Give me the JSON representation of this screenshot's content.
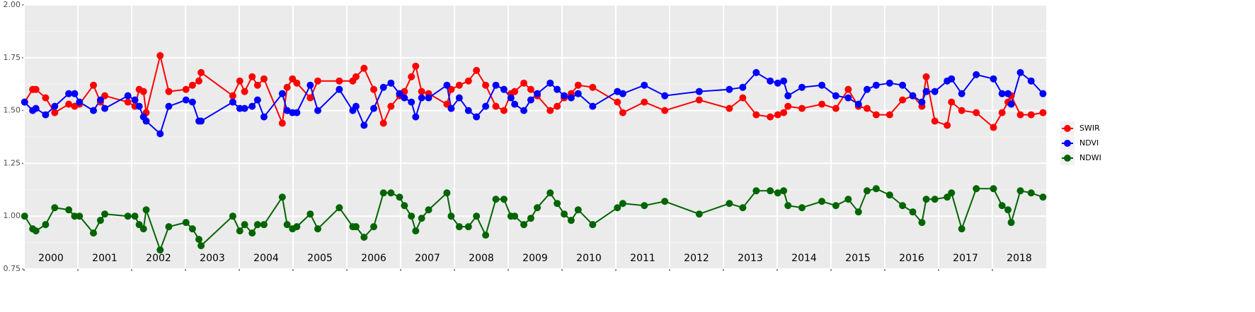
{
  "chart_data": {
    "type": "line",
    "x": [
      2000.01,
      2000.16,
      2000.22,
      2000.4,
      2000.57,
      2000.83,
      2000.94,
      2001.03,
      2001.29,
      2001.42,
      2001.5,
      2001.93,
      2002.06,
      2002.14,
      2002.22,
      2002.27,
      2002.53,
      2002.69,
      2003.01,
      2003.13,
      2003.25,
      2003.29,
      2003.88,
      2004.01,
      2004.1,
      2004.24,
      2004.34,
      2004.46,
      2004.8,
      2004.89,
      2004.99,
      2005.07,
      2005.32,
      2005.46,
      2005.86,
      2006.11,
      2006.17,
      2006.32,
      2006.5,
      2006.68,
      2006.82,
      2006.98,
      2007.07,
      2007.2,
      2007.28,
      2007.39,
      2007.52,
      2007.86,
      2007.94,
      2008.09,
      2008.26,
      2008.41,
      2008.58,
      2008.77,
      2008.92,
      2009.05,
      2009.12,
      2009.29,
      2009.42,
      2009.54,
      2009.78,
      2009.91,
      2010.04,
      2010.17,
      2010.3,
      2010.57,
      2011.03,
      2011.13,
      2011.53,
      2011.91,
      2012.55,
      2013.11,
      2013.36,
      2013.61,
      2013.87,
      2014.01,
      2014.12,
      2014.2,
      2014.46,
      2014.83,
      2015.09,
      2015.32,
      2015.51,
      2015.67,
      2015.84,
      2016.09,
      2016.33,
      2016.52,
      2016.69,
      2016.77,
      2016.93,
      2017.16,
      2017.24,
      2017.43,
      2017.7,
      2018.02,
      2018.18,
      2018.29,
      2018.35,
      2018.52,
      2018.72,
      2018.94
    ],
    "series": [
      {
        "name": "SWIR",
        "color": "#ff0000",
        "values": [
          1.54,
          1.6,
          1.6,
          1.56,
          1.49,
          1.53,
          1.52,
          1.53,
          1.62,
          1.54,
          1.57,
          1.54,
          1.52,
          1.6,
          1.59,
          1.49,
          1.76,
          1.59,
          1.6,
          1.62,
          1.64,
          1.68,
          1.57,
          1.64,
          1.59,
          1.66,
          1.62,
          1.65,
          1.44,
          1.61,
          1.65,
          1.63,
          1.56,
          1.64,
          1.64,
          1.64,
          1.66,
          1.7,
          1.6,
          1.44,
          1.52,
          1.57,
          1.59,
          1.66,
          1.71,
          1.59,
          1.58,
          1.53,
          1.6,
          1.62,
          1.64,
          1.69,
          1.62,
          1.52,
          1.5,
          1.58,
          1.59,
          1.63,
          1.6,
          1.57,
          1.5,
          1.52,
          1.56,
          1.58,
          1.62,
          1.61,
          1.54,
          1.49,
          1.54,
          1.5,
          1.55,
          1.51,
          1.56,
          1.48,
          1.47,
          1.48,
          1.49,
          1.52,
          1.51,
          1.53,
          1.51,
          1.6,
          1.52,
          1.51,
          1.48,
          1.48,
          1.55,
          1.57,
          1.52,
          1.66,
          1.45,
          1.43,
          1.54,
          1.5,
          1.49,
          1.42,
          1.49,
          1.54,
          1.57,
          1.48,
          1.48,
          1.49
        ]
      },
      {
        "name": "NDVI",
        "color": "#0000ff",
        "values": [
          1.54,
          1.5,
          1.51,
          1.48,
          1.52,
          1.58,
          1.58,
          1.54,
          1.5,
          1.55,
          1.51,
          1.57,
          1.55,
          1.52,
          1.47,
          1.45,
          1.39,
          1.52,
          1.55,
          1.54,
          1.45,
          1.45,
          1.54,
          1.51,
          1.51,
          1.52,
          1.55,
          1.47,
          1.58,
          1.5,
          1.49,
          1.49,
          1.62,
          1.5,
          1.6,
          1.5,
          1.52,
          1.43,
          1.51,
          1.61,
          1.63,
          1.58,
          1.56,
          1.54,
          1.47,
          1.56,
          1.56,
          1.62,
          1.51,
          1.56,
          1.5,
          1.47,
          1.52,
          1.62,
          1.6,
          1.56,
          1.53,
          1.5,
          1.55,
          1.58,
          1.63,
          1.6,
          1.57,
          1.56,
          1.58,
          1.52,
          1.59,
          1.58,
          1.62,
          1.57,
          1.59,
          1.6,
          1.61,
          1.68,
          1.64,
          1.63,
          1.64,
          1.57,
          1.61,
          1.62,
          1.57,
          1.56,
          1.53,
          1.6,
          1.62,
          1.63,
          1.62,
          1.57,
          1.54,
          1.59,
          1.59,
          1.64,
          1.65,
          1.58,
          1.67,
          1.65,
          1.58,
          1.58,
          1.53,
          1.68,
          1.64,
          1.58
        ]
      },
      {
        "name": "NDWI",
        "color": "#006400",
        "values": [
          1.0,
          0.94,
          0.93,
          0.96,
          1.04,
          1.03,
          1.0,
          1.0,
          0.92,
          0.98,
          1.01,
          1.0,
          1.0,
          0.96,
          0.94,
          1.03,
          0.84,
          0.95,
          0.97,
          0.94,
          0.89,
          0.86,
          1.0,
          0.93,
          0.96,
          0.92,
          0.96,
          0.96,
          1.09,
          0.96,
          0.94,
          0.95,
          1.01,
          0.94,
          1.04,
          0.95,
          0.95,
          0.9,
          0.95,
          1.11,
          1.11,
          1.09,
          1.05,
          1.0,
          0.93,
          0.99,
          1.03,
          1.11,
          1.0,
          0.95,
          0.95,
          1.0,
          0.91,
          1.08,
          1.08,
          1.0,
          1.0,
          0.96,
          0.99,
          1.04,
          1.11,
          1.06,
          1.01,
          0.98,
          1.03,
          0.96,
          1.04,
          1.06,
          1.05,
          1.07,
          1.01,
          1.06,
          1.04,
          1.12,
          1.12,
          1.11,
          1.12,
          1.05,
          1.04,
          1.07,
          1.05,
          1.08,
          1.02,
          1.12,
          1.13,
          1.1,
          1.05,
          1.02,
          0.97,
          1.08,
          1.08,
          1.09,
          1.11,
          0.94,
          1.13,
          1.13,
          1.05,
          1.03,
          0.97,
          1.12,
          1.11,
          1.09
        ]
      }
    ],
    "xlim": [
      2000,
      2019
    ],
    "xticks": [
      {
        "value": 2000,
        "label": "2000"
      },
      {
        "value": 2001,
        "label": "2001"
      },
      {
        "value": 2002,
        "label": "2002"
      },
      {
        "value": 2003,
        "label": "2003"
      },
      {
        "value": 2004,
        "label": "2004"
      },
      {
        "value": 2005,
        "label": "2005"
      },
      {
        "value": 2006,
        "label": "2006"
      },
      {
        "value": 2007,
        "label": "2007"
      },
      {
        "value": 2008,
        "label": "2008"
      },
      {
        "value": 2009,
        "label": "2009"
      },
      {
        "value": 2010,
        "label": "2010"
      },
      {
        "value": 2011,
        "label": "2011"
      },
      {
        "value": 2012,
        "label": "2012"
      },
      {
        "value": 2013,
        "label": "2013"
      },
      {
        "value": 2014,
        "label": "2014"
      },
      {
        "value": 2015,
        "label": "2015"
      },
      {
        "value": 2016,
        "label": "2016"
      },
      {
        "value": 2017,
        "label": "2017"
      },
      {
        "value": 2018,
        "label": "2018"
      }
    ],
    "ylim": [
      0.75,
      2.0
    ],
    "yticks": [
      {
        "value": 0.75,
        "label": "0.75"
      },
      {
        "value": 1.0,
        "label": "1.00"
      },
      {
        "value": 1.25,
        "label": "1.25"
      },
      {
        "value": 1.5,
        "label": "1.50"
      },
      {
        "value": 1.75,
        "label": "1.75"
      },
      {
        "value": 2.0,
        "label": "2.00"
      }
    ],
    "grid": true,
    "legend": "right"
  }
}
